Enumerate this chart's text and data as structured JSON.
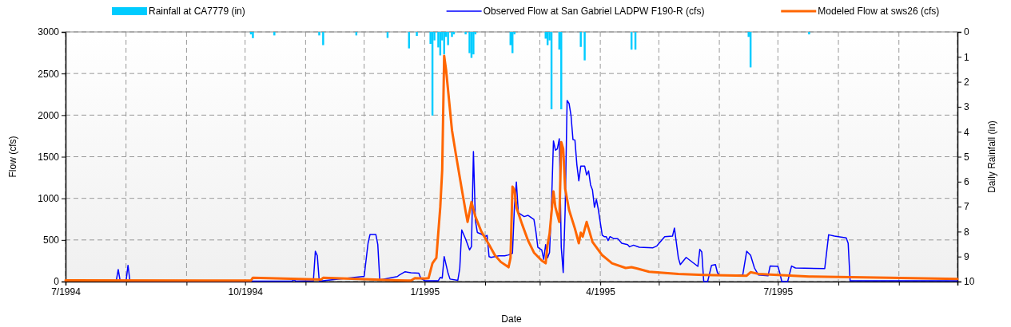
{
  "chart_data": {
    "type": "line",
    "xlabel": "Date",
    "ylabel": "Flow (cfs)",
    "y2label": "Daily Rainfall (in)",
    "xlim": [
      "1994-07-01",
      "1995-10-01"
    ],
    "xticks": [
      {
        "value": "1994-07-01",
        "label": "7/1994"
      },
      {
        "value": "1994-08-01",
        "label": null
      },
      {
        "value": "1994-09-01",
        "label": null
      },
      {
        "value": "1994-10-01",
        "label": "10/1994"
      },
      {
        "value": "1994-11-01",
        "label": null
      },
      {
        "value": "1994-12-01",
        "label": null
      },
      {
        "value": "1995-01-01",
        "label": "1/1995"
      },
      {
        "value": "1995-02-01",
        "label": null
      },
      {
        "value": "1995-03-01",
        "label": null
      },
      {
        "value": "1995-04-01",
        "label": "4/1995"
      },
      {
        "value": "1995-05-01",
        "label": null
      },
      {
        "value": "1995-06-01",
        "label": null
      },
      {
        "value": "1995-07-01",
        "label": "7/1995"
      },
      {
        "value": "1995-08-01",
        "label": null
      },
      {
        "value": "1995-09-01",
        "label": null
      },
      {
        "value": "1995-10-01",
        "label": null
      }
    ],
    "ylim": [
      0,
      3000
    ],
    "yticks": [
      0,
      500,
      1000,
      1500,
      2000,
      2500,
      3000
    ],
    "y2lim": [
      10,
      0
    ],
    "y2ticks": [
      0,
      1,
      2,
      3,
      4,
      5,
      6,
      7,
      8,
      9,
      10
    ],
    "grid": true,
    "legend": "top",
    "line_style": "solid",
    "marker": "none",
    "series": [
      {
        "name": "Rainfall at CA7779 (in)",
        "type": "bar",
        "axis": "y2",
        "color": "#00ccff",
        "x": [
          "1994-10-04",
          "1994-10-05",
          "1994-10-16",
          "1994-11-08",
          "1994-11-10",
          "1994-11-27",
          "1994-12-13",
          "1994-12-24",
          "1994-12-28",
          "1995-01-04",
          "1995-01-05",
          "1995-01-06",
          "1995-01-08",
          "1995-01-09",
          "1995-01-10",
          "1995-01-11",
          "1995-01-12",
          "1995-01-13",
          "1995-01-15",
          "1995-01-16",
          "1995-01-22",
          "1995-01-24",
          "1995-01-25",
          "1995-01-26",
          "1995-01-27",
          "1995-02-14",
          "1995-02-15",
          "1995-02-16",
          "1995-03-04",
          "1995-03-05",
          "1995-03-06",
          "1995-03-07",
          "1995-03-11",
          "1995-03-12",
          "1995-03-22",
          "1995-03-24",
          "1995-04-17",
          "1995-04-19",
          "1995-06-16",
          "1995-06-17",
          "1995-07-17"
        ],
        "values": [
          0.1,
          0.25,
          0.14,
          0.14,
          0.53,
          0.14,
          0.24,
          0.66,
          0.16,
          0.48,
          3.35,
          0.34,
          0.62,
          0.94,
          0.34,
          0.9,
          0.2,
          0.53,
          0.2,
          0.1,
          0.1,
          0.85,
          1.04,
          0.9,
          0.1,
          0.53,
          0.85,
          0.1,
          0.27,
          0.53,
          0.34,
          3.1,
          0.71,
          3.1,
          0.6,
          1.14,
          0.71,
          0.71,
          0.2,
          1.42,
          0.1
        ]
      },
      {
        "name": "Observed Flow at San Gabriel LADPW F190-R (cfs)",
        "color": "#0000ff",
        "x": [
          "1994-07-01",
          "1994-07-27",
          "1994-07-28",
          "1994-07-29",
          "1994-08-01",
          "1994-08-02",
          "1994-08-03",
          "1994-10-25",
          "1994-10-26",
          "1994-10-27",
          "1994-11-05",
          "1994-11-06",
          "1994-11-07",
          "1994-11-08",
          "1994-11-30",
          "1994-12-01",
          "1994-12-03",
          "1994-12-04",
          "1994-12-07",
          "1994-12-08",
          "1994-12-09",
          "1994-12-18",
          "1994-12-19",
          "1994-12-22",
          "1994-12-25",
          "1994-12-29",
          "1994-12-30",
          "1995-01-01",
          "1995-01-08",
          "1995-01-09",
          "1995-01-10",
          "1995-01-11",
          "1995-01-13",
          "1995-01-14",
          "1995-01-18",
          "1995-01-19",
          "1995-01-20",
          "1995-01-22",
          "1995-01-24",
          "1995-01-25",
          "1995-01-26",
          "1995-01-27",
          "1995-01-28",
          "1995-01-30",
          "1995-02-01",
          "1995-02-02",
          "1995-02-03",
          "1995-02-04",
          "1995-02-08",
          "1995-02-11",
          "1995-02-13",
          "1995-02-15",
          "1995-02-16",
          "1995-02-17",
          "1995-02-18",
          "1995-02-21",
          "1995-02-23",
          "1995-02-26",
          "1995-02-27",
          "1995-02-28",
          "1995-03-02",
          "1995-03-03",
          "1995-03-04",
          "1995-03-05",
          "1995-03-06",
          "1995-03-07",
          "1995-03-08",
          "1995-03-09",
          "1995-03-10",
          "1995-03-11",
          "1995-03-12",
          "1995-03-13",
          "1995-03-14",
          "1995-03-15",
          "1995-03-16",
          "1995-03-17",
          "1995-03-18",
          "1995-03-19",
          "1995-03-20",
          "1995-03-21",
          "1995-03-22",
          "1995-03-24",
          "1995-03-25",
          "1995-03-26",
          "1995-03-27",
          "1995-03-28",
          "1995-03-29",
          "1995-03-30",
          "1995-03-31",
          "1995-04-02",
          "1995-04-03",
          "1995-04-04",
          "1995-04-05",
          "1995-04-06",
          "1995-04-08",
          "1995-04-10",
          "1995-04-12",
          "1995-04-15",
          "1995-04-16",
          "1995-04-18",
          "1995-04-21",
          "1995-04-28",
          "1995-04-30",
          "1995-05-04",
          "1995-05-08",
          "1995-05-09",
          "1995-05-11",
          "1995-05-12",
          "1995-05-15",
          "1995-05-21",
          "1995-05-22",
          "1995-05-23",
          "1995-05-24",
          "1995-05-26",
          "1995-05-28",
          "1995-05-30",
          "1995-05-31",
          "1995-06-01",
          "1995-06-13",
          "1995-06-15",
          "1995-06-17",
          "1995-06-19",
          "1995-06-21",
          "1995-06-26",
          "1995-06-27",
          "1995-07-01",
          "1995-07-02",
          "1995-07-03",
          "1995-07-06",
          "1995-07-08",
          "1995-07-10",
          "1995-07-25",
          "1995-07-27",
          "1995-07-30",
          "1995-08-05",
          "1995-08-06",
          "1995-08-07",
          "1995-10-01"
        ],
        "values": [
          10,
          10,
          144,
          5,
          5,
          195,
          5,
          5,
          20,
          5,
          10,
          364,
          310,
          5,
          60,
          60,
          460,
          565,
          565,
          444,
          20,
          60,
          77,
          118,
          105,
          100,
          40,
          10,
          10,
          50,
          40,
          300,
          100,
          30,
          15,
          156,
          620,
          510,
          380,
          420,
          1563,
          731,
          590,
          570,
          540,
          555,
          300,
          290,
          310,
          310,
          320,
          340,
          900,
          1195,
          827,
          780,
          795,
          747,
          600,
          412,
          380,
          268,
          444,
          285,
          350,
          925,
          1690,
          1579,
          1595,
          1716,
          412,
          108,
          863,
          2176,
          2140,
          1994,
          1706,
          1700,
          1403,
          1210,
          1387,
          1387,
          1280,
          1330,
          1163,
          1100,
          892,
          988,
          863,
          556,
          540,
          540,
          492,
          540,
          514,
          514,
          460,
          444,
          418,
          437,
          412,
          406,
          428,
          540,
          546,
          642,
          284,
          204,
          290,
          182,
          387,
          355,
          0,
          0,
          195,
          204,
          108,
          80,
          80,
          364,
          316,
          163,
          80,
          70,
          186,
          182,
          100,
          0,
          0,
          186,
          163,
          156,
          562,
          546,
          524,
          460,
          10,
          10
        ]
      },
      {
        "name": "Modeled Flow at sws26 (cfs)",
        "color": "#ff6600",
        "x": [
          "1994-07-01",
          "1994-10-04",
          "1994-10-05",
          "1994-11-09",
          "1994-11-10",
          "1994-12-18",
          "1994-12-25",
          "1994-12-27",
          "1995-01-01",
          "1995-01-03",
          "1995-01-05",
          "1995-01-06",
          "1995-01-07",
          "1995-01-09",
          "1995-01-10",
          "1995-01-11",
          "1995-01-12",
          "1995-01-15",
          "1995-01-17",
          "1995-01-20",
          "1995-01-22",
          "1995-01-23",
          "1995-01-25",
          "1995-01-27",
          "1995-01-30",
          "1995-02-03",
          "1995-02-06",
          "1995-02-09",
          "1995-02-13",
          "1995-02-14",
          "1995-02-15",
          "1995-02-16",
          "1995-02-17",
          "1995-02-20",
          "1995-02-23",
          "1995-02-26",
          "1995-03-02",
          "1995-03-04",
          "1995-03-05",
          "1995-03-06",
          "1995-03-08",
          "1995-03-09",
          "1995-03-11",
          "1995-03-12",
          "1995-03-13",
          "1995-03-14",
          "1995-03-16",
          "1995-03-19",
          "1995-03-21",
          "1995-03-22",
          "1995-03-23",
          "1995-03-25",
          "1995-03-26",
          "1995-03-28",
          "1995-04-02",
          "1995-04-07",
          "1995-04-14",
          "1995-04-17",
          "1995-04-20",
          "1995-04-26",
          "1995-05-11",
          "1995-05-24",
          "1995-06-15",
          "1995-06-17",
          "1995-06-21",
          "1995-07-17",
          "1995-08-27",
          "1995-10-01"
        ],
        "values": [
          15,
          12,
          46,
          25,
          45,
          15,
          12,
          40,
          35,
          40,
          220,
          252,
          284,
          892,
          1340,
          2713,
          2540,
          1819,
          1530,
          1115,
          843,
          716,
          956,
          780,
          604,
          444,
          316,
          236,
          172,
          284,
          1141,
          1100,
          892,
          684,
          492,
          348,
          252,
          220,
          444,
          572,
          1083,
          892,
          716,
          1675,
          1595,
          1115,
          860,
          636,
          460,
          588,
          540,
          716,
          636,
          476,
          316,
          220,
          163,
          172,
          156,
          118,
          92,
          80,
          70,
          112,
          92,
          60,
          45,
          30
        ]
      }
    ]
  }
}
